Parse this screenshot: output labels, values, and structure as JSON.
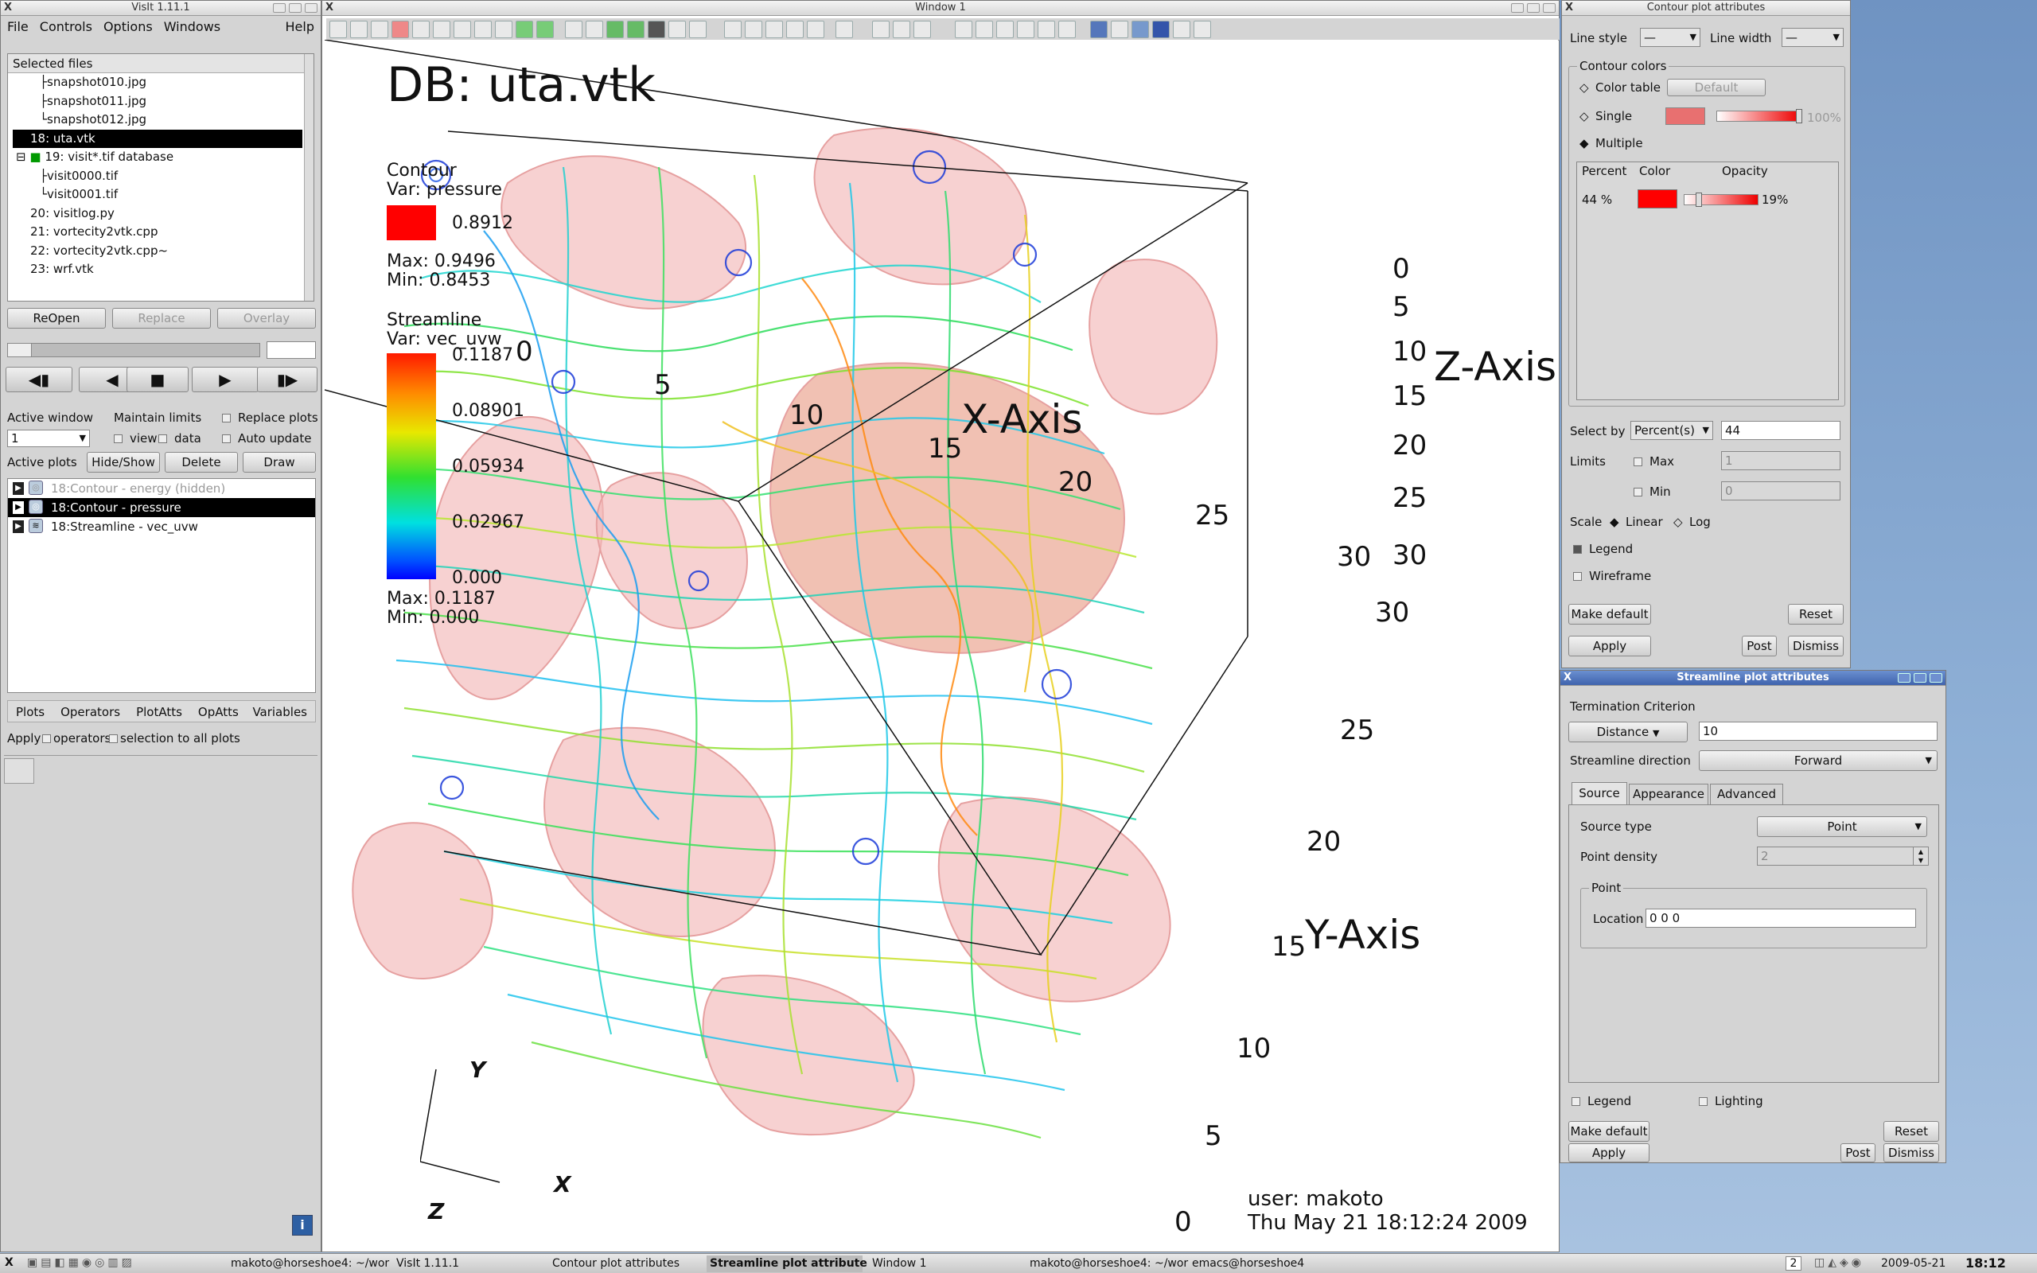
{
  "main_window": {
    "title": "VisIt 1.11.1",
    "menu": [
      "File",
      "Controls",
      "Options",
      "Windows"
    ],
    "help": "Help"
  },
  "selected_files": {
    "header": "Selected files",
    "items": [
      "snapshot010.jpg",
      "snapshot011.jpg",
      "snapshot012.jpg",
      "18: uta.vtk",
      "19: visit*.tif database",
      "visit0000.tif",
      "visit0001.tif",
      "20: visitlog.py",
      "21: vortecity2vtk.cpp",
      "22: vortecity2vtk.cpp~",
      "23: wrf.vtk"
    ],
    "selected": "18: uta.vtk"
  },
  "file_buttons": {
    "reopen": "ReOpen",
    "replace": "Replace",
    "overlay": "Overlay"
  },
  "playback": {
    "prev": "◀▮",
    "back": "◀",
    "stop": "■",
    "play": "▶",
    "next": "▮▶"
  },
  "window_ctrl": {
    "active_window_label": "Active window",
    "active_window_value": "1",
    "maintain_limits": "Maintain limits",
    "view": "view",
    "data": "data",
    "replace_plots": "Replace plots",
    "auto_update": "Auto update"
  },
  "active_plots": {
    "label": "Active plots",
    "hide_show": "Hide/Show",
    "delete": "Delete",
    "draw": "Draw",
    "rows": [
      "18:Contour - energy (hidden)",
      "18:Contour - pressure",
      "18:Streamline - vec_uvw"
    ]
  },
  "plot_menu": {
    "items": [
      "Plots",
      "Operators",
      "PlotAtts",
      "OpAtts"
    ],
    "variables": "Variables"
  },
  "apply_row": {
    "apply": "Apply",
    "operators": "operators",
    "selection": "selection to all plots"
  },
  "vis_window": {
    "title": "Window 1",
    "db_title": "DB: uta.vtk",
    "contour_legend": {
      "title": "Contour",
      "var": "Var: pressure",
      "value": "0.8912",
      "max": "Max:  0.9496",
      "min": "Min:  0.8453",
      "color": "#ff0000"
    },
    "stream_legend": {
      "title": "Streamline",
      "var": "Var: vec_uvw",
      "ticks": [
        "0.1187",
        "0.08901",
        "0.05934",
        "0.02967",
        "0.000"
      ],
      "max": "Max:  0.1187",
      "min": "Min:  0.000"
    },
    "axes": {
      "x_title": "X-Axis",
      "y_title": "Y-Axis",
      "z_title": "Z-Axis",
      "x_ticks": [
        "0",
        "5",
        "10",
        "15",
        "20",
        "25",
        "30"
      ],
      "z_ticks": [
        "0",
        "5",
        "10",
        "15",
        "20",
        "25",
        "30"
      ],
      "y_ticks": [
        "30",
        "25",
        "20",
        "15",
        "10",
        "5",
        "0"
      ],
      "triad": {
        "x": "X",
        "y": "Y",
        "z": "Z"
      }
    },
    "user": "user: makoto",
    "date": "Thu May 21 18:12:24 2009"
  },
  "contour_atts": {
    "title": "Contour plot attributes",
    "line_style": "Line style",
    "line_width": "Line width",
    "contour_colors": "Contour colors",
    "color_table": "Color table",
    "default": "Default",
    "single": "Single",
    "single_opacity": "100%",
    "multiple": "Multiple",
    "cols": [
      "Percent",
      "Color",
      "Opacity"
    ],
    "row_percent": "44 %",
    "row_opacity": "19%",
    "select_by": "Select by",
    "select_by_value": "Percent(s)",
    "select_value": "44",
    "limits": "Limits",
    "max": "Max",
    "max_value": "1",
    "min": "Min",
    "min_value": "0",
    "scale": "Scale",
    "linear": "Linear",
    "log": "Log",
    "legend": "Legend",
    "wireframe": "Wireframe",
    "make_default": "Make default",
    "reset": "Reset",
    "apply": "Apply",
    "post": "Post",
    "dismiss": "Dismiss"
  },
  "stream_atts": {
    "title": "Streamline plot attributes",
    "termination": "Termination Criterion",
    "distance": "Distance",
    "distance_value": "10",
    "direction_label": "Streamline direction",
    "direction_value": "Forward",
    "tabs": [
      "Source",
      "Appearance",
      "Advanced"
    ],
    "source_type": "Source type",
    "source_type_value": "Point",
    "point_density": "Point density",
    "point_density_value": "2",
    "point_group": "Point",
    "location": "Location",
    "location_value": "0 0 0",
    "legend": "Legend",
    "lighting": "Lighting",
    "make_default": "Make default",
    "reset": "Reset",
    "apply": "Apply",
    "post": "Post",
    "dismiss": "Dismiss"
  },
  "taskbar": {
    "tasks": [
      "makoto@horseshoe4: ~/wor",
      "VisIt 1.11.1",
      "Contour plot attributes",
      "Streamline plot attribute",
      "Window 1",
      "makoto@horseshoe4: ~/wor",
      "emacs@horseshoe4"
    ],
    "active_task": "Streamline plot attribute",
    "workspace": "2",
    "date": "2009-05-21",
    "time": "18:12"
  }
}
